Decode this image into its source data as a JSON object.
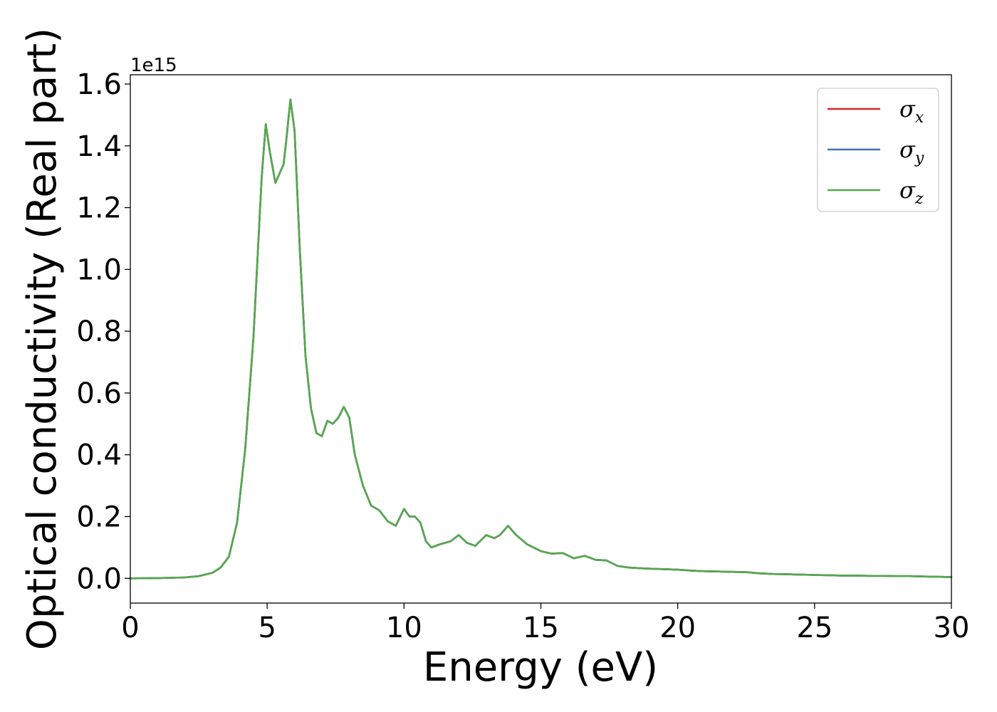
{
  "chart_data": {
    "type": "line",
    "xlabel": "Energy (eV)",
    "ylabel": "Optical conductivity (Real part)",
    "y_offset_text": "1e15",
    "xlim": [
      0,
      30
    ],
    "ylim": [
      -0.08,
      1.63
    ],
    "x_ticks": [
      0,
      5,
      10,
      15,
      20,
      25,
      30
    ],
    "x_tick_labels": [
      "0",
      "5",
      "10",
      "15",
      "20",
      "25",
      "30"
    ],
    "y_ticks": [
      0.0,
      0.2,
      0.4,
      0.6,
      0.8,
      1.0,
      1.2,
      1.4,
      1.6
    ],
    "y_tick_labels": [
      "0.0",
      "0.2",
      "0.4",
      "0.6",
      "0.8",
      "1.0",
      "1.2",
      "1.4",
      "1.6"
    ],
    "grid": false,
    "legend_position": "top-right",
    "x": [
      0,
      1,
      2,
      2.5,
      3,
      3.3,
      3.6,
      3.9,
      4.2,
      4.5,
      4.8,
      4.95,
      5.1,
      5.3,
      5.5,
      5.6,
      5.7,
      5.85,
      6.0,
      6.2,
      6.4,
      6.6,
      6.8,
      7.0,
      7.2,
      7.4,
      7.6,
      7.8,
      8.0,
      8.2,
      8.5,
      8.8,
      9.1,
      9.4,
      9.7,
      10.0,
      10.2,
      10.4,
      10.6,
      10.8,
      11.0,
      11.3,
      11.7,
      12.0,
      12.3,
      12.6,
      13.0,
      13.3,
      13.5,
      13.8,
      14.1,
      14.5,
      15.0,
      15.4,
      15.8,
      16.2,
      16.6,
      17.0,
      17.4,
      17.8,
      18.2,
      18.8,
      19.4,
      20.0,
      20.5,
      21.0,
      21.5,
      22.0,
      22.5,
      23.0,
      23.5,
      24.0,
      24.5,
      25.0,
      25.5,
      26.0,
      26.5,
      27.0,
      27.5,
      28.0,
      28.5,
      29.0,
      29.5,
      30.0
    ],
    "series": [
      {
        "name": "σx",
        "label_base": "σ",
        "label_sub": "x",
        "color": "#d62728",
        "values": [
          0.0,
          0.001,
          0.003,
          0.007,
          0.018,
          0.035,
          0.07,
          0.18,
          0.42,
          0.78,
          1.3,
          1.47,
          1.38,
          1.28,
          1.32,
          1.34,
          1.42,
          1.55,
          1.45,
          1.05,
          0.72,
          0.55,
          0.47,
          0.46,
          0.51,
          0.5,
          0.52,
          0.555,
          0.52,
          0.4,
          0.3,
          0.235,
          0.22,
          0.185,
          0.17,
          0.225,
          0.2,
          0.2,
          0.18,
          0.12,
          0.1,
          0.11,
          0.12,
          0.14,
          0.115,
          0.105,
          0.14,
          0.13,
          0.14,
          0.17,
          0.14,
          0.11,
          0.088,
          0.08,
          0.082,
          0.065,
          0.073,
          0.06,
          0.058,
          0.04,
          0.035,
          0.032,
          0.03,
          0.028,
          0.025,
          0.023,
          0.022,
          0.021,
          0.02,
          0.016,
          0.014,
          0.013,
          0.012,
          0.011,
          0.01,
          0.009,
          0.009,
          0.008,
          0.008,
          0.007,
          0.007,
          0.006,
          0.005,
          0.004
        ]
      },
      {
        "name": "σy",
        "label_base": "σ",
        "label_sub": "y",
        "color": "#3b75af",
        "values": [
          0.0,
          0.001,
          0.003,
          0.007,
          0.018,
          0.035,
          0.07,
          0.18,
          0.42,
          0.78,
          1.3,
          1.47,
          1.38,
          1.28,
          1.32,
          1.34,
          1.42,
          1.55,
          1.45,
          1.05,
          0.72,
          0.55,
          0.47,
          0.46,
          0.51,
          0.5,
          0.52,
          0.555,
          0.52,
          0.4,
          0.3,
          0.235,
          0.22,
          0.185,
          0.17,
          0.225,
          0.2,
          0.2,
          0.18,
          0.12,
          0.1,
          0.11,
          0.12,
          0.14,
          0.115,
          0.105,
          0.14,
          0.13,
          0.14,
          0.17,
          0.14,
          0.11,
          0.088,
          0.08,
          0.082,
          0.065,
          0.073,
          0.06,
          0.058,
          0.04,
          0.035,
          0.032,
          0.03,
          0.028,
          0.025,
          0.023,
          0.022,
          0.021,
          0.02,
          0.016,
          0.014,
          0.013,
          0.012,
          0.011,
          0.01,
          0.009,
          0.009,
          0.008,
          0.008,
          0.007,
          0.007,
          0.006,
          0.005,
          0.004
        ]
      },
      {
        "name": "σz",
        "label_base": "σ",
        "label_sub": "z",
        "color": "#55a84f",
        "values": [
          0.0,
          0.001,
          0.003,
          0.007,
          0.018,
          0.035,
          0.07,
          0.18,
          0.42,
          0.78,
          1.3,
          1.47,
          1.38,
          1.28,
          1.32,
          1.34,
          1.42,
          1.55,
          1.45,
          1.05,
          0.72,
          0.55,
          0.47,
          0.46,
          0.51,
          0.5,
          0.52,
          0.555,
          0.52,
          0.4,
          0.3,
          0.235,
          0.22,
          0.185,
          0.17,
          0.225,
          0.2,
          0.2,
          0.18,
          0.12,
          0.1,
          0.11,
          0.12,
          0.14,
          0.115,
          0.105,
          0.14,
          0.13,
          0.14,
          0.17,
          0.14,
          0.11,
          0.088,
          0.08,
          0.082,
          0.065,
          0.073,
          0.06,
          0.058,
          0.04,
          0.035,
          0.032,
          0.03,
          0.028,
          0.025,
          0.023,
          0.022,
          0.021,
          0.02,
          0.016,
          0.014,
          0.013,
          0.012,
          0.011,
          0.01,
          0.009,
          0.009,
          0.008,
          0.008,
          0.007,
          0.007,
          0.006,
          0.005,
          0.004
        ]
      }
    ]
  }
}
